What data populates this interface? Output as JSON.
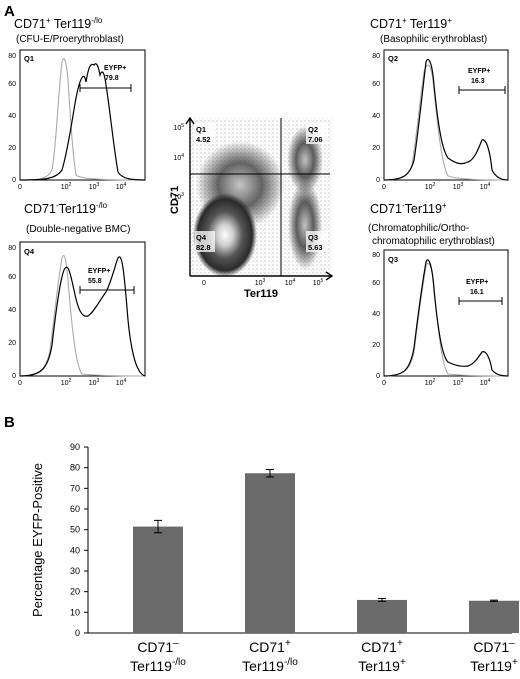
{
  "panel_a": {
    "letter": "A",
    "histograms": [
      {
        "id": "q1",
        "quadrant": "Q1",
        "title_main": "CD71",
        "title_sup1": "+",
        "title_mid": " Ter119",
        "title_sup2": "-/lo",
        "subtitle": "(CFU-E/Proerythroblast)",
        "gate_label": "EYFP+",
        "gate_value": "79.8",
        "yticks": [
          "0",
          "20",
          "40",
          "60",
          "80"
        ],
        "xticks": [
          "0",
          "10",
          "10",
          "10",
          "10"
        ],
        "xexp": [
          "",
          "2",
          "3",
          "4",
          ""
        ]
      },
      {
        "id": "q2",
        "quadrant": "Q2",
        "title_main": "CD71",
        "title_sup1": "+",
        "title_mid": " Ter119",
        "title_sup2": "+",
        "subtitle": "(Basophilic erythroblast)",
        "gate_label": "EYFP+",
        "gate_value": "16.3",
        "yticks": [
          "0",
          "20",
          "40",
          "60",
          "80"
        ],
        "xticks": [
          "0",
          "10",
          "10",
          "10"
        ],
        "xexp": [
          "",
          "2",
          "3",
          "4"
        ]
      },
      {
        "id": "q4",
        "quadrant": "Q4",
        "title_main": "CD71",
        "title_sup1": "-",
        "title_mid": "Ter119",
        "title_sup2": "-/lo",
        "subtitle": "(Double-negative BMC)",
        "gate_label": "EYFP+",
        "gate_value": "55.8",
        "yticks": [
          "0",
          "20",
          "40",
          "60",
          "80"
        ],
        "xticks": [
          "0",
          "10",
          "10",
          "10"
        ],
        "xexp": [
          "",
          "2",
          "3",
          "4"
        ]
      },
      {
        "id": "q3",
        "quadrant": "Q3",
        "title_main": "CD71",
        "title_sup1": "-",
        "title_mid": "Ter119",
        "title_sup2": "+",
        "subtitle": "(Chromatophilic/Ortho-",
        "subtitle2": "chromatophilic erythroblast)",
        "gate_label": "EYFP+",
        "gate_value": "16.1",
        "yticks": [
          "0",
          "20",
          "40",
          "60",
          "80"
        ],
        "xticks": [
          "0",
          "10",
          "10",
          "10"
        ],
        "xexp": [
          "",
          "2",
          "3",
          "4"
        ]
      }
    ],
    "dotplot": {
      "ylabel": "CD71",
      "xlabel": "Ter119",
      "quadrants": [
        {
          "label": "Q1",
          "value": "4.52"
        },
        {
          "label": "Q2",
          "value": "7.06"
        },
        {
          "label": "Q4",
          "value": "82.8"
        },
        {
          "label": "Q3",
          "value": "5.63"
        }
      ],
      "yticks_exp": [
        "5",
        "4",
        "3"
      ],
      "xticks": [
        "0",
        "10",
        "10",
        "10",
        "10"
      ],
      "xticks_exp": [
        "",
        "3",
        "4",
        "5",
        ""
      ]
    }
  },
  "chart_data": {
    "type": "bar",
    "panel_letter": "B",
    "ylabel": "Percentage EYFP-Positive",
    "ylim": [
      0,
      90
    ],
    "yticks": [
      0,
      10,
      20,
      30,
      40,
      50,
      60,
      70,
      80,
      90
    ],
    "categories": [
      {
        "l1": "CD71",
        "s1": "–",
        "l2": "Ter119",
        "s2": "-/lo"
      },
      {
        "l1": "CD71",
        "s1": "+",
        "l2": "Ter119",
        "s2": "-/lo"
      },
      {
        "l1": "CD71",
        "s1": "+",
        "l2": "Ter119",
        "s2": "+"
      },
      {
        "l1": "CD71",
        "s1": "–",
        "l2": "Ter119",
        "s2": "+"
      }
    ],
    "values": [
      51.5,
      77.3,
      16.0,
      15.6
    ],
    "errors": [
      3.0,
      1.8,
      0.7,
      0.3
    ],
    "bar_color": "#6b6b6b",
    "grid": false
  }
}
